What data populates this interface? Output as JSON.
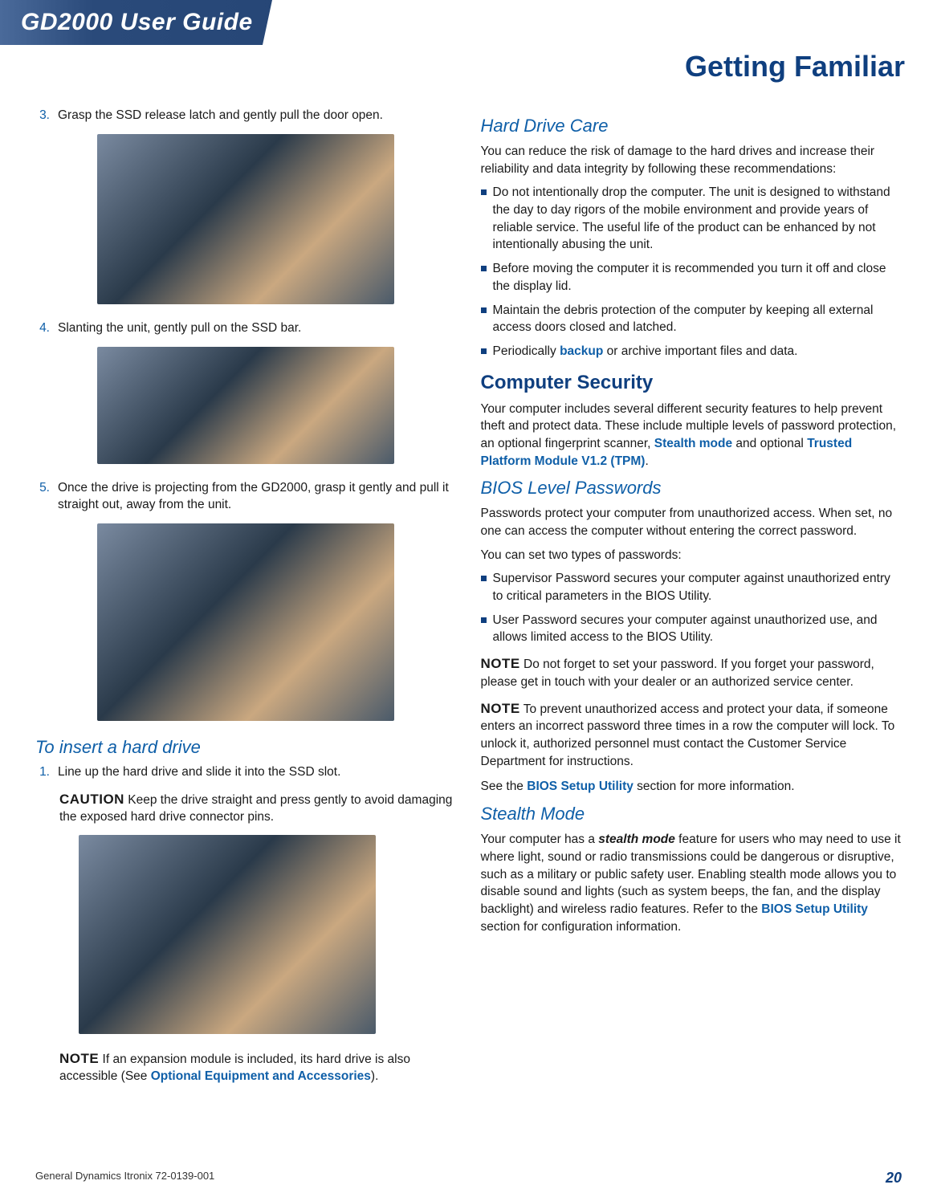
{
  "header": {
    "guide_title": "GD2000 User Guide",
    "section_title": "Getting Familiar"
  },
  "left": {
    "steps": [
      {
        "n": "3.",
        "t": "Grasp the SSD release latch and gently pull the door open."
      },
      {
        "n": "4.",
        "t": "Slanting the unit, gently pull on the SSD bar."
      },
      {
        "n": "5.",
        "t": "Once the drive is projecting from the GD2000, grasp it gently and pull it straight out, away from the unit."
      }
    ],
    "insert_h": "To insert a hard drive",
    "insert_step": {
      "n": "1.",
      "t": "Line up the hard drive and slide it into the SSD slot."
    },
    "caution_label": "CAUTION",
    "caution_text": "  Keep the drive straight and press gently to avoid damaging the exposed hard drive connector pins.",
    "note_label": "NOTE",
    "note_text_a": "  If an expansion module is included, its hard drive is also accessible  (See ",
    "note_link": "Optional Equipment and Accessories",
    "note_text_b": ")."
  },
  "right": {
    "hdc_h": "Hard Drive Care",
    "hdc_intro": "You can reduce the risk of damage to the hard drives and increase their reliability and data integrity by following these recommendations:",
    "hdc_bullets": [
      "Do not intentionally drop the computer. The unit is designed to withstand the day to day rigors of the mobile environment and provide years of reliable service. The useful life of the product can be enhanced by not intentionally abusing the unit.",
      "Before moving the computer it is recommended you turn it off and close the display lid.",
      "Maintain the debris protection of the computer by keeping all external access doors closed and latched."
    ],
    "hdc_bullet4_a": "Periodically ",
    "hdc_bullet4_link": "backup",
    "hdc_bullet4_b": " or archive important files and data.",
    "cs_h": "Computer Security",
    "cs_p_a": "Your computer includes several different security features to help prevent theft and protect data. These include multiple levels of password protection, an optional fingerprint scanner,  ",
    "cs_link1": "Stealth mode",
    "cs_p_b": " and optional ",
    "cs_link2": "Trusted Platform Module V1.2 (TPM)",
    "cs_p_c": ".",
    "bios_h": "BIOS Level Passwords",
    "bios_p1": "Passwords protect your computer from unauthorized access. When set, no one can access the computer without entering the correct password.",
    "bios_p2": "You can set two types of passwords:",
    "bios_bullets": [
      "Supervisor Password secures your computer against unauthorized entry to critical parameters in the BIOS Utility.",
      "User Password secures your computer against unauthorized use, and allows limited access to the BIOS Utility."
    ],
    "note_label": "NOTE",
    "note1": "   Do not forget to set your password. If you forget your password, please get in touch with your dealer or an authorized service center.",
    "note2": "  To prevent unauthorized access and protect your data, if someone enters an incorrect password three times in a row the computer will lock.  To unlock it,  authorized personnel must contact the Customer Service Department for instructions.",
    "bios_see_a": "See the ",
    "bios_see_link": "BIOS Setup Utility",
    "bios_see_b": " section for more information.",
    "sm_h": "Stealth Mode",
    "sm_p_a": "Your computer has a ",
    "sm_em": "stealth mode",
    "sm_p_b": " feature for users who may need to use it where light, sound or radio transmissions could be dangerous or disruptive, such as a military or public safety user. Enabling stealth mode allows you to disable sound and lights (such as system beeps, the fan, and the display backlight) and wireless radio features. Refer to the ",
    "sm_link": "BIOS Setup Utility",
    "sm_p_c": " section for configuration information."
  },
  "footer": {
    "left": "General Dynamics Itronix 72-0139-001",
    "page": "20"
  },
  "colors": {
    "brand_blue": "#0f3f7f",
    "link_blue": "#0f5fa8",
    "banner_gradient_start": "#4a6a9a",
    "banner_gradient_end": "#1a3a6a",
    "text": "#1a1a1a"
  },
  "typography": {
    "body_fontsize": 15.5,
    "h1_fontsize": 36,
    "h2_fontsize": 24,
    "subh_fontsize": 22
  }
}
